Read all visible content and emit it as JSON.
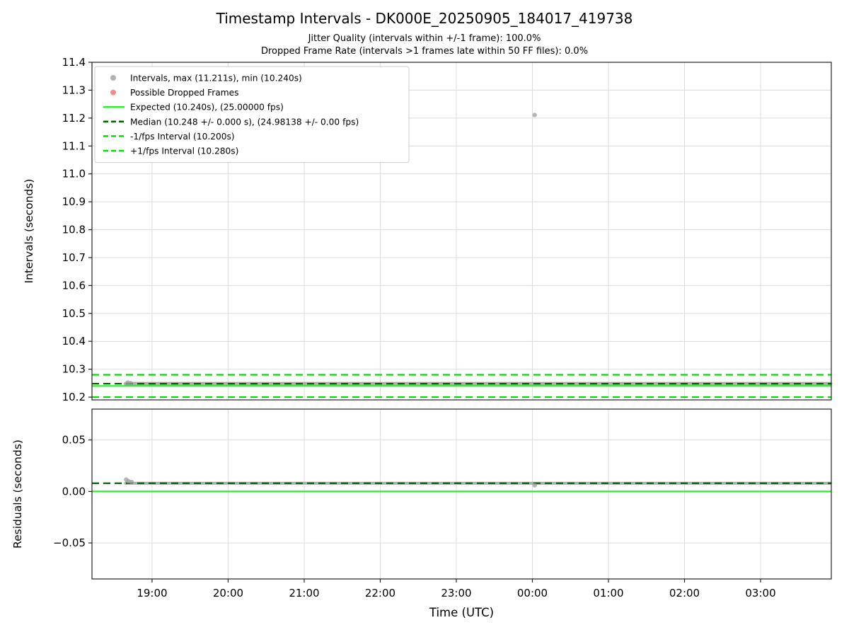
{
  "figure": {
    "title": "Timestamp Intervals - DK000E_20250905_184017_419738",
    "subtitle1": "Jitter Quality (intervals within +/-1 frame): 100.0%",
    "subtitle2": "Dropped Frame Rate (intervals >1 frames late within 50 FF files): 0.0%"
  },
  "colors": {
    "expected": "#2bef2b",
    "fps_band": "#00dd00",
    "median": "#006400",
    "points": "#9e9e9e",
    "dropped": "#f96b6b",
    "grid": "#dcdcdc",
    "spine": "#222222",
    "text": "#000000"
  },
  "chart_data": [
    {
      "id": "intervals",
      "type": "scatter",
      "ylabel": "Intervals (seconds)",
      "ylim": [
        10.19,
        11.4
      ],
      "xlim": [
        18.21,
        27.93
      ],
      "grid": true,
      "show_xtick_labels": false,
      "yticks": [
        {
          "v": 10.2,
          "label": "10.2"
        },
        {
          "v": 10.3,
          "label": "10.3"
        },
        {
          "v": 10.4,
          "label": "10.4"
        },
        {
          "v": 10.5,
          "label": "10.5"
        },
        {
          "v": 10.6,
          "label": "10.6"
        },
        {
          "v": 10.7,
          "label": "10.7"
        },
        {
          "v": 10.8,
          "label": "10.8"
        },
        {
          "v": 10.9,
          "label": "10.9"
        },
        {
          "v": 11.0,
          "label": "11.0"
        },
        {
          "v": 11.1,
          "label": "11.1"
        },
        {
          "v": 11.2,
          "label": "11.2"
        },
        {
          "v": 11.3,
          "label": "11.3"
        },
        {
          "v": 11.4,
          "label": "11.4"
        }
      ],
      "xticks": [
        {
          "v": 19,
          "label": "19:00"
        },
        {
          "v": 20,
          "label": "20:00"
        },
        {
          "v": 21,
          "label": "21:00"
        },
        {
          "v": 22,
          "label": "22:00"
        },
        {
          "v": 23,
          "label": "23:00"
        },
        {
          "v": 24,
          "label": "00:00"
        },
        {
          "v": 25,
          "label": "01:00"
        },
        {
          "v": 26,
          "label": "02:00"
        },
        {
          "v": 27,
          "label": "03:00"
        }
      ],
      "hlines": [
        {
          "y": 10.28,
          "color_key": "fps_band",
          "style": "dashed",
          "name": "plus-1fps-line"
        },
        {
          "y": 10.2,
          "color_key": "fps_band",
          "style": "dashed",
          "name": "minus-1fps-line"
        },
        {
          "y": 10.24,
          "color_key": "expected",
          "style": "solid",
          "name": "expected-line"
        },
        {
          "y": 10.248,
          "color_key": "median",
          "style": "dashed",
          "name": "median-line"
        }
      ],
      "band": {
        "x_start": 18.65,
        "x_end": 27.92,
        "y": 10.248,
        "thickness_px": 5
      },
      "points": [
        {
          "x": 24.03,
          "y": 11.211
        },
        {
          "x": 18.68,
          "y": 10.252
        },
        {
          "x": 18.72,
          "y": 10.25
        }
      ],
      "stats": {
        "max_interval_s": 11.211,
        "min_interval_s": 10.24,
        "expected_s": 10.24,
        "expected_fps": 25.0,
        "median_s": 10.248,
        "median_fps": 24.98138
      },
      "legend": {
        "entries": [
          {
            "type": "marker",
            "color_key": "points",
            "label": "Intervals, max (11.211s), min (10.240s)"
          },
          {
            "type": "marker",
            "color_key": "dropped",
            "label": "Possible Dropped Frames"
          },
          {
            "type": "line",
            "style": "solid",
            "color_key": "expected",
            "label": "Expected (10.240s), (25.00000 fps)"
          },
          {
            "type": "line",
            "style": "dashed",
            "color_key": "median",
            "label": "Median (10.248 +/- 0.000 s), (24.98138 +/- 0.00 fps)"
          },
          {
            "type": "line",
            "style": "dashed",
            "color_key": "fps_band",
            "label": "-1/fps Interval (10.200s)"
          },
          {
            "type": "line",
            "style": "dashed",
            "color_key": "fps_band",
            "label": "+1/fps Interval (10.280s)"
          }
        ]
      }
    },
    {
      "id": "residuals",
      "type": "scatter",
      "ylabel": "Residuals (seconds)",
      "xlabel": "Time (UTC)",
      "ylim": [
        -0.085,
        0.08
      ],
      "xlim": [
        18.21,
        27.93
      ],
      "grid": true,
      "show_xtick_labels": true,
      "yticks": [
        {
          "v": 0.05,
          "label": "0.05"
        },
        {
          "v": 0.0,
          "label": "0.00"
        },
        {
          "v": -0.05,
          "label": "−0.05"
        }
      ],
      "xticks": [
        {
          "v": 19,
          "label": "19:00"
        },
        {
          "v": 20,
          "label": "20:00"
        },
        {
          "v": 21,
          "label": "21:00"
        },
        {
          "v": 22,
          "label": "22:00"
        },
        {
          "v": 23,
          "label": "23:00"
        },
        {
          "v": 24,
          "label": "00:00"
        },
        {
          "v": 25,
          "label": "01:00"
        },
        {
          "v": 26,
          "label": "02:00"
        },
        {
          "v": 27,
          "label": "03:00"
        }
      ],
      "hlines": [
        {
          "y": 0.0,
          "color_key": "expected",
          "style": "solid",
          "name": "zero-residual-line"
        },
        {
          "y": 0.008,
          "color_key": "median",
          "style": "dashed",
          "name": "median-residual-line"
        }
      ],
      "band": {
        "x_start": 18.65,
        "x_end": 27.92,
        "y": 0.008,
        "thickness_px": 4
      },
      "points": [
        {
          "x": 18.66,
          "y": 0.0115
        },
        {
          "x": 18.69,
          "y": 0.01
        },
        {
          "x": 18.73,
          "y": 0.0092
        },
        {
          "x": 24.03,
          "y": 0.006
        }
      ]
    }
  ]
}
